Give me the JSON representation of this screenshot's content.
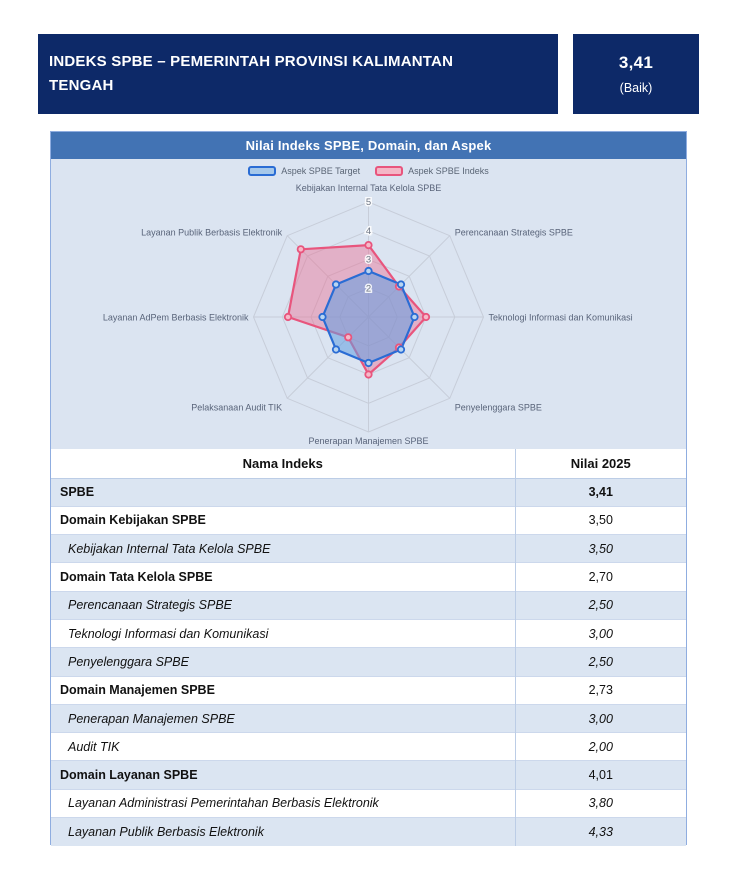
{
  "header": {
    "title": "INDEKS SPBE – PEMERINTAH PROVINSI KALIMANTAN TENGAH",
    "score_value": "3,41",
    "score_category": "(Baik)"
  },
  "panel": {
    "title": "Nilai Indeks SPBE, Domain, dan Aspek"
  },
  "chart_data": {
    "type": "radar",
    "title": "Nilai Indeks SPBE, Domain, dan Aspek",
    "categories": [
      "Kebijakan Internal Tata Kelola SPBE",
      "Perencanaan Strategis SPBE",
      "Teknologi Informasi dan Komunikasi",
      "Penyelenggara SPBE",
      "Penerapan Manajemen SPBE",
      "Pelaksanaan Audit TIK",
      "Layanan AdPem Berbasis Elektronik",
      "Layanan Publik Berbasis Elektronik"
    ],
    "series": [
      {
        "name": "Aspek SPBE Target",
        "values": [
          2.6,
          2.6,
          2.6,
          2.6,
          2.6,
          2.6,
          2.6,
          2.6
        ],
        "stroke": "#2a6cd4",
        "fill": "rgba(98,158,224,0.55)",
        "marker_fill": "#b9d5f1"
      },
      {
        "name": "Aspek SPBE Indeks",
        "values": [
          3.5,
          2.5,
          3.0,
          2.5,
          3.0,
          2.0,
          3.8,
          4.33
        ],
        "stroke": "#e8557d",
        "fill": "rgba(237,105,140,0.42)",
        "marker_fill": "#f6b9c9"
      }
    ],
    "scale": {
      "min": 1,
      "max": 5,
      "tick_labels": [
        5,
        4,
        3,
        2
      ]
    },
    "legend_position": "top",
    "grid": true
  },
  "table": {
    "columns": [
      "Nama Indeks",
      "Nilai 2025"
    ],
    "rows": [
      {
        "name": "SPBE",
        "value": "3,41",
        "style": "total"
      },
      {
        "name": "Domain Kebijakan SPBE",
        "value": "3,50",
        "style": "domain"
      },
      {
        "name": "Kebijakan Internal Tata Kelola SPBE",
        "value": "3,50",
        "style": "aspect"
      },
      {
        "name": "Domain Tata Kelola SPBE",
        "value": "2,70",
        "style": "domain"
      },
      {
        "name": "Perencanaan Strategis SPBE",
        "value": "2,50",
        "style": "aspect"
      },
      {
        "name": "Teknologi Informasi dan Komunikasi",
        "value": "3,00",
        "style": "aspect"
      },
      {
        "name": "Penyelenggara SPBE",
        "value": "2,50",
        "style": "aspect"
      },
      {
        "name": "Domain Manajemen SPBE",
        "value": "2,73",
        "style": "domain"
      },
      {
        "name": "Penerapan Manajemen SPBE",
        "value": "3,00",
        "style": "aspect"
      },
      {
        "name": "Audit TIK",
        "value": "2,00",
        "style": "aspect"
      },
      {
        "name": "Domain Layanan SPBE",
        "value": "4,01",
        "style": "domain"
      },
      {
        "name": "Layanan Administrasi Pemerintahan Berbasis Elektronik",
        "value": "3,80",
        "style": "aspect"
      },
      {
        "name": "Layanan Publik Berbasis Elektronik",
        "value": "4,33",
        "style": "aspect"
      }
    ]
  },
  "colors": {
    "navy": "#0d2968",
    "panel_title_bg": "#4273b4",
    "chart_bg": "#dbe4f1",
    "row_alt_bg": "#dbe5f2",
    "grid_line": "#c7cdd9",
    "target_stroke": "#2a6cd4",
    "indeks_stroke": "#e8557d"
  }
}
